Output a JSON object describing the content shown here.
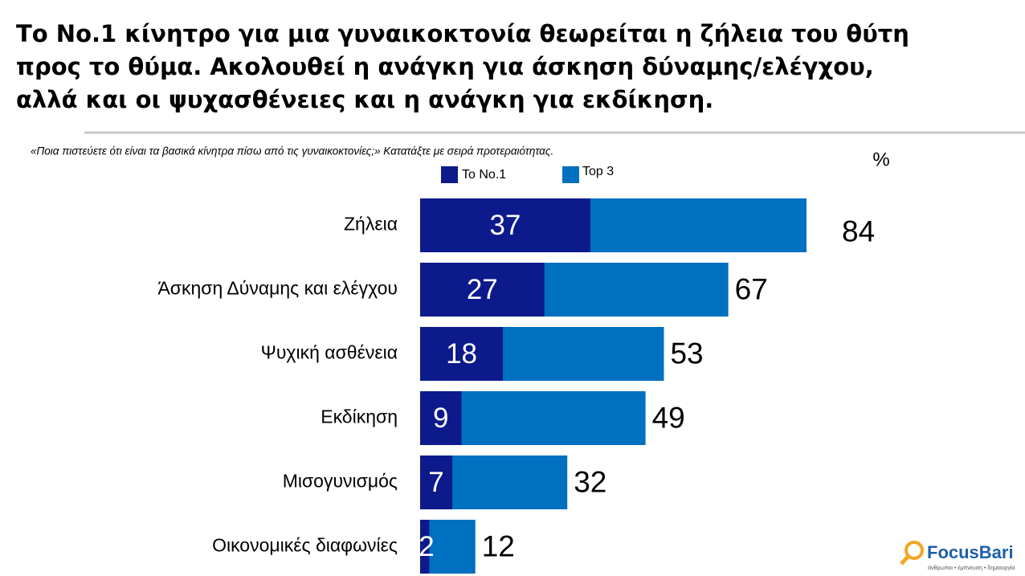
{
  "chart_data": {
    "type": "bar",
    "title": [
      "Το No.1 κίνητρο για μια γυναικοκτονία θεωρείται η ζήλεια του θύτη",
      "προς το θύμα.  Ακολουθεί η ανάγκη για άσκηση δύναμης/ελέγχου,",
      "αλλά και οι ψυχασθένειες και η ανάγκη για εκδίκηση."
    ],
    "subtitle": "«Ποια πιστεύετε ότι είναι τα βασικά κίνητρα πίσω από τις γυναικοκτονίες;» Κατατάξτε με σειρά προτεραιότητας.",
    "unit_label": "%",
    "orientation": "horizontal",
    "categories": [
      "Ζήλεια",
      "Άσκηση Δύναμης και ελέγχου",
      "Ψυχική ασθένεια",
      "Εκδίκηση",
      "Μισογυνισμός",
      "Οικονομικές διαφωνίες"
    ],
    "series": [
      {
        "name": "Top 3",
        "color": "#0070c0",
        "values": [
          84,
          67,
          53,
          49,
          32,
          12
        ]
      },
      {
        "name": "Το No.1",
        "color": "#0d1a8c",
        "values": [
          37,
          27,
          18,
          9,
          7,
          2
        ]
      }
    ],
    "xlim": [
      0,
      84
    ]
  },
  "logo": {
    "name": "FocusBari",
    "tagline": "άνθρωποι • έμπνευση • δημιουργία"
  }
}
